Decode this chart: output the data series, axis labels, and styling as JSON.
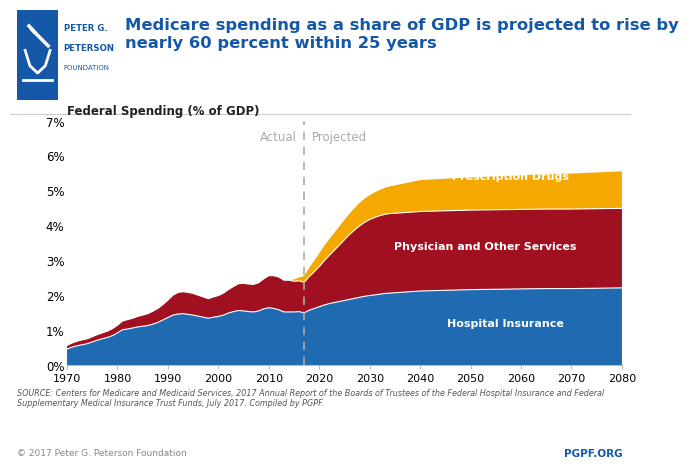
{
  "title": "Medicare spending as a share of GDP is projected to rise by\nnearly 60 percent within 25 years",
  "ylabel": "Federal Spending (% of GDP)",
  "source_text": "SOURCE: Centers for Medicare and Medicaid Services, 2017 Annual Report of the Boards of Trustees of the Federal Hospital Insurance and Federal\nSupplementary Medical Insurance Trust Funds, July 2017. Compiled by PGPF.",
  "copyright_text": "© 2017 Peter G. Peterson Foundation",
  "pgpf_text": "PGPF.ORG",
  "divider_year": 2017,
  "actual_label": "Actual",
  "projected_label": "Projected",
  "colors": {
    "hospital": "#1f6ab0",
    "physician": "#a01020",
    "drugs": "#f5a800",
    "title": "#1a5da0",
    "divider": "#aaaaaa"
  },
  "years": [
    1970,
    1971,
    1972,
    1973,
    1974,
    1975,
    1976,
    1977,
    1978,
    1979,
    1980,
    1981,
    1982,
    1983,
    1984,
    1985,
    1986,
    1987,
    1988,
    1989,
    1990,
    1991,
    1992,
    1993,
    1994,
    1995,
    1996,
    1997,
    1998,
    1999,
    2000,
    2001,
    2002,
    2003,
    2004,
    2005,
    2006,
    2007,
    2008,
    2009,
    2010,
    2011,
    2012,
    2013,
    2014,
    2015,
    2016,
    2017,
    2018,
    2019,
    2020,
    2021,
    2022,
    2023,
    2024,
    2025,
    2026,
    2027,
    2028,
    2029,
    2030,
    2031,
    2032,
    2033,
    2034,
    2035,
    2036,
    2037,
    2038,
    2039,
    2040,
    2045,
    2050,
    2055,
    2060,
    2065,
    2070,
    2075,
    2080
  ],
  "hospital": [
    0.47,
    0.52,
    0.56,
    0.59,
    0.62,
    0.67,
    0.72,
    0.76,
    0.8,
    0.85,
    0.93,
    1.02,
    1.04,
    1.07,
    1.1,
    1.12,
    1.14,
    1.18,
    1.23,
    1.3,
    1.37,
    1.44,
    1.47,
    1.48,
    1.46,
    1.44,
    1.41,
    1.38,
    1.35,
    1.38,
    1.4,
    1.44,
    1.5,
    1.54,
    1.57,
    1.56,
    1.54,
    1.53,
    1.56,
    1.62,
    1.65,
    1.63,
    1.59,
    1.53,
    1.53,
    1.53,
    1.54,
    1.5,
    1.58,
    1.63,
    1.68,
    1.73,
    1.77,
    1.8,
    1.83,
    1.86,
    1.89,
    1.92,
    1.95,
    1.98,
    2.0,
    2.02,
    2.04,
    2.06,
    2.07,
    2.08,
    2.09,
    2.1,
    2.11,
    2.12,
    2.13,
    2.15,
    2.17,
    2.18,
    2.19,
    2.2,
    2.2,
    2.21,
    2.22
  ],
  "physician": [
    0.1,
    0.12,
    0.13,
    0.14,
    0.14,
    0.15,
    0.16,
    0.17,
    0.18,
    0.2,
    0.22,
    0.25,
    0.27,
    0.28,
    0.3,
    0.32,
    0.34,
    0.37,
    0.4,
    0.44,
    0.5,
    0.57,
    0.62,
    0.63,
    0.63,
    0.62,
    0.6,
    0.58,
    0.56,
    0.58,
    0.6,
    0.63,
    0.67,
    0.72,
    0.77,
    0.79,
    0.79,
    0.79,
    0.81,
    0.86,
    0.92,
    0.94,
    0.94,
    0.91,
    0.91,
    0.88,
    0.88,
    0.88,
    0.96,
    1.05,
    1.15,
    1.27,
    1.38,
    1.5,
    1.62,
    1.74,
    1.86,
    1.96,
    2.05,
    2.12,
    2.18,
    2.22,
    2.25,
    2.27,
    2.28,
    2.28,
    2.28,
    2.28,
    2.28,
    2.28,
    2.28,
    2.28,
    2.28,
    2.28,
    2.28,
    2.28,
    2.28,
    2.28,
    2.28
  ],
  "drugs": [
    0.0,
    0.0,
    0.0,
    0.0,
    0.0,
    0.0,
    0.0,
    0.0,
    0.0,
    0.0,
    0.0,
    0.0,
    0.0,
    0.0,
    0.0,
    0.0,
    0.0,
    0.0,
    0.0,
    0.0,
    0.0,
    0.0,
    0.0,
    0.0,
    0.0,
    0.0,
    0.0,
    0.0,
    0.0,
    0.0,
    0.0,
    0.0,
    0.0,
    0.0,
    0.0,
    0.0,
    0.0,
    0.0,
    0.0,
    0.0,
    0.0,
    0.0,
    0.0,
    0.0,
    0.0,
    0.05,
    0.1,
    0.18,
    0.25,
    0.32,
    0.38,
    0.43,
    0.47,
    0.5,
    0.54,
    0.57,
    0.6,
    0.63,
    0.66,
    0.68,
    0.7,
    0.72,
    0.74,
    0.76,
    0.78,
    0.8,
    0.82,
    0.84,
    0.86,
    0.88,
    0.9,
    0.92,
    0.94,
    0.96,
    0.98,
    1.0,
    1.02,
    1.04,
    1.06
  ],
  "xlim": [
    1970,
    2080
  ],
  "ylim": [
    0,
    0.07
  ],
  "xticks": [
    1970,
    1980,
    1990,
    2000,
    2010,
    2020,
    2030,
    2040,
    2050,
    2060,
    2070,
    2080
  ],
  "yticks": [
    0,
    0.01,
    0.02,
    0.03,
    0.04,
    0.05,
    0.06,
    0.07
  ],
  "ytick_labels": [
    "0%",
    "1%",
    "2%",
    "3%",
    "4%",
    "5%",
    "6%",
    "7%"
  ]
}
